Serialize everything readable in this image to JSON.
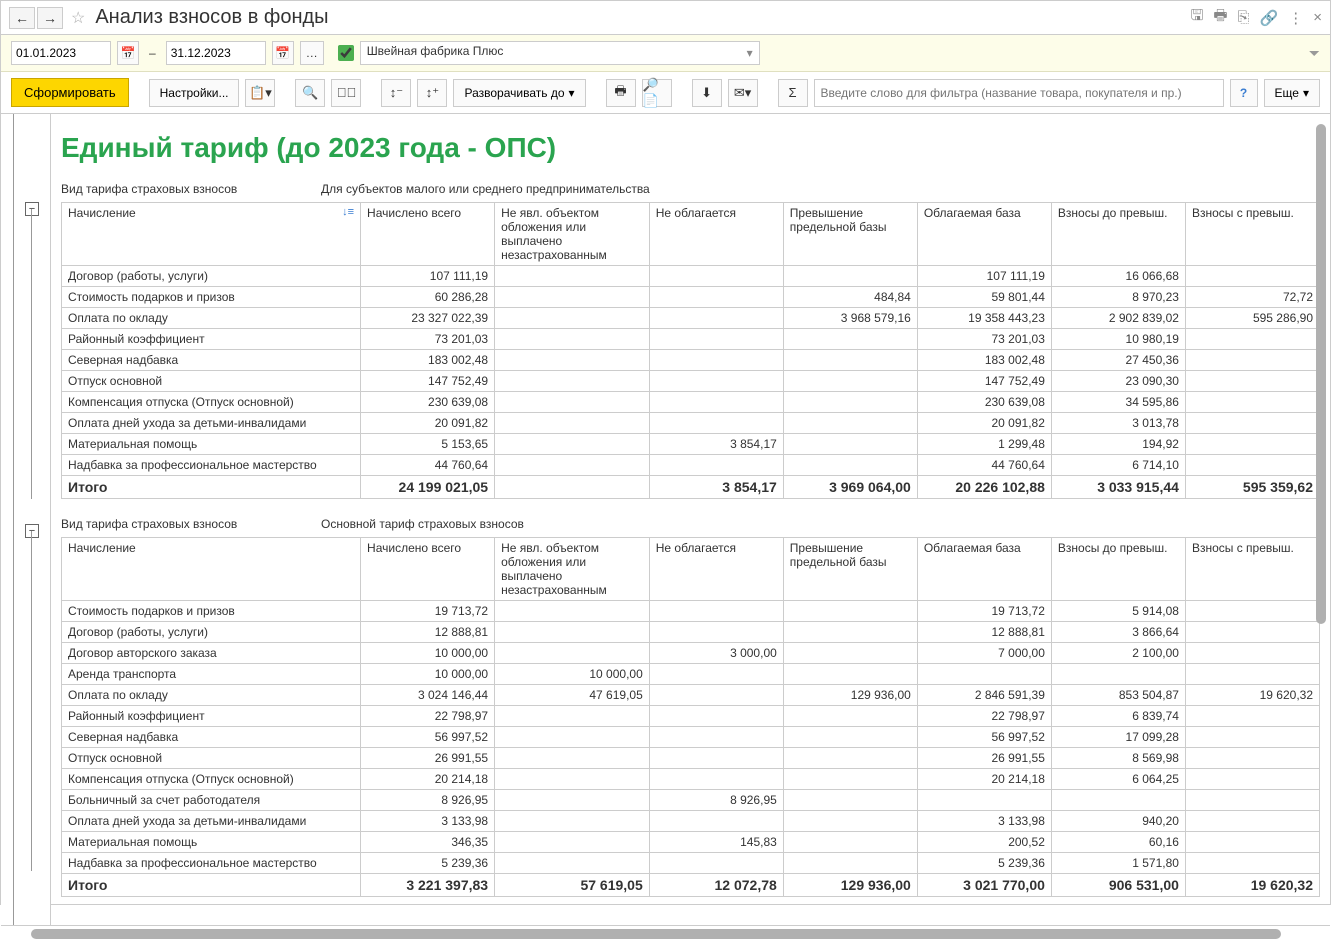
{
  "window": {
    "title": "Анализ взносов в фонды"
  },
  "filters": {
    "date_from": "01.01.2023",
    "date_to": "31.12.2023",
    "org": "Швейная фабрика Плюс"
  },
  "toolbar": {
    "generate": "Сформировать",
    "settings": "Настройки...",
    "expand": "Разворачивать до",
    "more": "Еще",
    "search_placeholder": "Введите слово для фильтра (название товара, покупателя и пр.)"
  },
  "report": {
    "title": "Единый тариф (до 2023 года - ОПС)",
    "tariff_label": "Вид тарифа страховых взносов",
    "columns": [
      "Начисление",
      "Начислено всего",
      "Не явл. объектом обложения или выплачено незастрахованным",
      "Не облагается",
      "Превышение предельной базы",
      "Облагаемая база",
      "Взносы до превыш.",
      "Взносы с превыш."
    ]
  },
  "section1": {
    "tariff": "Для субъектов малого или среднего предпринимательства",
    "rows": [
      {
        "name": "Договор (работы, услуги)",
        "c1": "107 111,19",
        "c2": "",
        "c3": "",
        "c4": "",
        "c5": "107 111,19",
        "c6": "16 066,68",
        "c7": ""
      },
      {
        "name": "Стоимость подарков и призов",
        "c1": "60 286,28",
        "c2": "",
        "c3": "",
        "c4": "484,84",
        "c5": "59 801,44",
        "c6": "8 970,23",
        "c7": "72,72"
      },
      {
        "name": "Оплата по окладу",
        "c1": "23 327 022,39",
        "c2": "",
        "c3": "",
        "c4": "3 968 579,16",
        "c5": "19 358 443,23",
        "c6": "2 902 839,02",
        "c7": "595 286,90"
      },
      {
        "name": "Районный коэффициент",
        "c1": "73 201,03",
        "c2": "",
        "c3": "",
        "c4": "",
        "c5": "73 201,03",
        "c6": "10 980,19",
        "c7": ""
      },
      {
        "name": "Северная надбавка",
        "c1": "183 002,48",
        "c2": "",
        "c3": "",
        "c4": "",
        "c5": "183 002,48",
        "c6": "27 450,36",
        "c7": ""
      },
      {
        "name": "Отпуск основной",
        "c1": "147 752,49",
        "c2": "",
        "c3": "",
        "c4": "",
        "c5": "147 752,49",
        "c6": "23 090,30",
        "c7": ""
      },
      {
        "name": "Компенсация отпуска (Отпуск основной)",
        "c1": "230 639,08",
        "c2": "",
        "c3": "",
        "c4": "",
        "c5": "230 639,08",
        "c6": "34 595,86",
        "c7": ""
      },
      {
        "name": "Оплата дней ухода за детьми-инвалидами",
        "c1": "20 091,82",
        "c2": "",
        "c3": "",
        "c4": "",
        "c5": "20 091,82",
        "c6": "3 013,78",
        "c7": ""
      },
      {
        "name": "Материальная помощь",
        "c1": "5 153,65",
        "c2": "",
        "c3": "3 854,17",
        "c4": "",
        "c5": "1 299,48",
        "c6": "194,92",
        "c7": ""
      },
      {
        "name": "Надбавка за профессиональное мастерство",
        "c1": "44 760,64",
        "c2": "",
        "c3": "",
        "c4": "",
        "c5": "44 760,64",
        "c6": "6 714,10",
        "c7": ""
      }
    ],
    "total": {
      "name": "Итого",
      "c1": "24 199 021,05",
      "c2": "",
      "c3": "3 854,17",
      "c4": "3 969 064,00",
      "c5": "20 226 102,88",
      "c6": "3 033 915,44",
      "c7": "595 359,62"
    }
  },
  "section2": {
    "tariff": "Основной тариф страховых взносов",
    "rows": [
      {
        "name": "Стоимость подарков и призов",
        "c1": "19 713,72",
        "c2": "",
        "c3": "",
        "c4": "",
        "c5": "19 713,72",
        "c6": "5 914,08",
        "c7": ""
      },
      {
        "name": "Договор (работы, услуги)",
        "c1": "12 888,81",
        "c2": "",
        "c3": "",
        "c4": "",
        "c5": "12 888,81",
        "c6": "3 866,64",
        "c7": ""
      },
      {
        "name": "Договор авторского заказа",
        "c1": "10 000,00",
        "c2": "",
        "c3": "3 000,00",
        "c4": "",
        "c5": "7 000,00",
        "c6": "2 100,00",
        "c7": ""
      },
      {
        "name": "Аренда транспорта",
        "c1": "10 000,00",
        "c2": "10 000,00",
        "c3": "",
        "c4": "",
        "c5": "",
        "c6": "",
        "c7": ""
      },
      {
        "name": "Оплата по окладу",
        "c1": "3 024 146,44",
        "c2": "47 619,05",
        "c3": "",
        "c4": "129 936,00",
        "c5": "2 846 591,39",
        "c6": "853 504,87",
        "c7": "19 620,32"
      },
      {
        "name": "Районный коэффициент",
        "c1": "22 798,97",
        "c2": "",
        "c3": "",
        "c4": "",
        "c5": "22 798,97",
        "c6": "6 839,74",
        "c7": ""
      },
      {
        "name": "Северная надбавка",
        "c1": "56 997,52",
        "c2": "",
        "c3": "",
        "c4": "",
        "c5": "56 997,52",
        "c6": "17 099,28",
        "c7": ""
      },
      {
        "name": "Отпуск основной",
        "c1": "26 991,55",
        "c2": "",
        "c3": "",
        "c4": "",
        "c5": "26 991,55",
        "c6": "8 569,98",
        "c7": ""
      },
      {
        "name": "Компенсация отпуска (Отпуск основной)",
        "c1": "20 214,18",
        "c2": "",
        "c3": "",
        "c4": "",
        "c5": "20 214,18",
        "c6": "6 064,25",
        "c7": ""
      },
      {
        "name": "Больничный за счет работодателя",
        "c1": "8 926,95",
        "c2": "",
        "c3": "8 926,95",
        "c4": "",
        "c5": "",
        "c6": "",
        "c7": ""
      },
      {
        "name": "Оплата дней ухода за детьми-инвалидами",
        "c1": "3 133,98",
        "c2": "",
        "c3": "",
        "c4": "",
        "c5": "3 133,98",
        "c6": "940,20",
        "c7": ""
      },
      {
        "name": "Материальная помощь",
        "c1": "346,35",
        "c2": "",
        "c3": "145,83",
        "c4": "",
        "c5": "200,52",
        "c6": "60,16",
        "c7": ""
      },
      {
        "name": "Надбавка за профессиональное мастерство",
        "c1": "5 239,36",
        "c2": "",
        "c3": "",
        "c4": "",
        "c5": "5 239,36",
        "c6": "1 571,80",
        "c7": ""
      }
    ],
    "total": {
      "name": "Итого",
      "c1": "3 221 397,83",
      "c2": "57 619,05",
      "c3": "12 072,78",
      "c4": "129 936,00",
      "c5": "3 021 770,00",
      "c6": "906 531,00",
      "c7": "19 620,32"
    }
  }
}
